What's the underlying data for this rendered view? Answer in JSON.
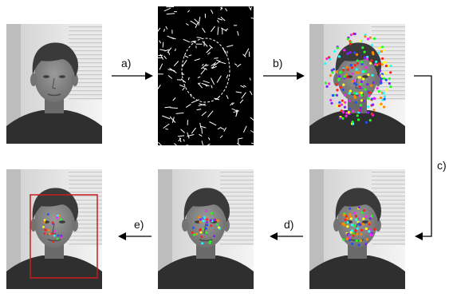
{
  "steps": [
    {
      "key": "a",
      "label": "a)"
    },
    {
      "key": "b",
      "label": "b)"
    },
    {
      "key": "c",
      "label": "c)"
    },
    {
      "key": "d",
      "label": "d)"
    },
    {
      "key": "e",
      "label": "e)"
    }
  ],
  "panels": [
    {
      "key": "input-photo",
      "kind": "photo"
    },
    {
      "key": "edge-map",
      "kind": "edges"
    },
    {
      "key": "all-features",
      "kind": "photo-dense-features"
    },
    {
      "key": "filtered-features",
      "kind": "photo-medium-features"
    },
    {
      "key": "clustered-features",
      "kind": "photo-sparse-features"
    },
    {
      "key": "detected-face",
      "kind": "photo-face-box"
    }
  ],
  "colors": {
    "feature_palette": [
      "#ff2020",
      "#20ff20",
      "#2050ff",
      "#ffff20",
      "#ff20ff",
      "#20ffff",
      "#ff8800",
      "#8020ff"
    ],
    "face_box": "#c81e1e",
    "arrow": "#000000"
  }
}
